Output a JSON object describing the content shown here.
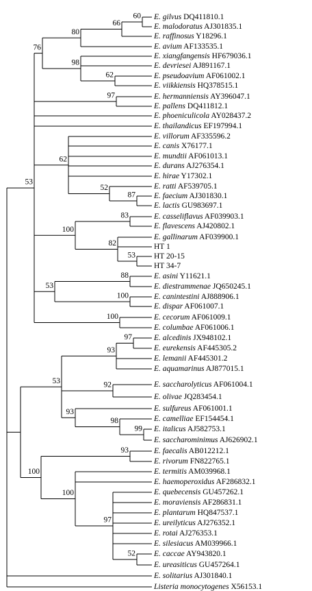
{
  "leaves": [
    {
      "name": "E. gilvus",
      "accession": "DQ411810.1"
    },
    {
      "name": "E. malodoratus",
      "accession": "AJ301835.1"
    },
    {
      "name": "E. raffinosus",
      "accession": "Y18296.1"
    },
    {
      "name": "E. avium",
      "accession": "AF133535.1"
    },
    {
      "name": "E. xiangfangensis",
      "accession": "HF679036.1"
    },
    {
      "name": "E. devriesei",
      "accession": "AJ891167.1"
    },
    {
      "name": "E. pseudoavium",
      "accession": "AF061002.1"
    },
    {
      "name": "E. viikkiensis",
      "accession": "HQ378515.1"
    },
    {
      "name": "E. hermanniensis",
      "accession": "AY396047.1"
    },
    {
      "name": "E. pallens",
      "accession": "DQ411812.1"
    },
    {
      "name": "E. phoeniculicola",
      "accession": "AY028437.2"
    },
    {
      "name": "E. thailandicus",
      "accession": "EF197994.1"
    },
    {
      "name": "E. villorum",
      "accession": "AF335596.2"
    },
    {
      "name": "E. canis",
      "accession": "X76177.1"
    },
    {
      "name": "E. mundtii",
      "accession": "AF061013.1"
    },
    {
      "name": "E. durans",
      "accession": "AJ276354.1"
    },
    {
      "name": "E. hirae",
      "accession": "Y17302.1"
    },
    {
      "name": "E. ratti",
      "accession": "AF539705.1"
    },
    {
      "name": "E. faecium",
      "accession": "AJ301830.1"
    },
    {
      "name": "E. lactis",
      "accession": "GU983697.1"
    },
    {
      "name": "E. casseliflavus",
      "accession": "AF039903.1"
    },
    {
      "name": "E. flavescens",
      "accession": "AJ420802.1"
    },
    {
      "name": "E. gallinarum",
      "accession": "AF039900.1"
    },
    {
      "label": "HT 1"
    },
    {
      "label": "HT 20-15"
    },
    {
      "label": "HT 34-7"
    },
    {
      "name": "E. asini",
      "accession": "Y11621.1"
    },
    {
      "name": "E. diestrammenae",
      "accession": "JQ650245.1"
    },
    {
      "name": "E. canintestini",
      "accession": "AJ888906.1"
    },
    {
      "name": "E. dispar",
      "accession": "AF061007.1"
    },
    {
      "name": "E. cecorum",
      "accession": "AF061009.1"
    },
    {
      "name": "E. columbae",
      "accession": "AF061006.1"
    },
    {
      "name": "E. alcedinis",
      "accession": "JX948102.1"
    },
    {
      "name": "E. eurekensis",
      "accession": "AF445305.2"
    },
    {
      "name": "E. lemanii",
      "accession": "AF445301.2"
    },
    {
      "name": "E. aquamarinus",
      "accession": "AJ877015.1"
    },
    {
      "name": "E. saccharolyticus",
      "accession": "AF061004.1"
    },
    {
      "name": "E. olivae",
      "accession": "JQ283454.1"
    },
    {
      "name": "E. sulfureus",
      "accession": "AF061001.1"
    },
    {
      "name": "E. camelliae",
      "accession": "EF154454.1"
    },
    {
      "name": "E. italicus",
      "accession": "AJ582753.1"
    },
    {
      "name": "E. saccharominimus",
      "accession": "AJ626902.1"
    },
    {
      "name": "E. faecalis",
      "accession": "AB012212.1"
    },
    {
      "name": "E. rivorum",
      "accession": "FN822765.1"
    },
    {
      "name": "E. termitis",
      "accession": "AM039968.1"
    },
    {
      "name": "E. haemoperoxidus",
      "accession": "AF286832.1"
    },
    {
      "name": "E. quebecensis",
      "accession": "GU457262.1"
    },
    {
      "name": "E. moraviensis",
      "accession": "AF286831.1"
    },
    {
      "name": "E. plantarum",
      "accession": "HQ847537.1"
    },
    {
      "name": "E. ureilyticus",
      "accession": "AJ276352.1"
    },
    {
      "name": "E. rotai",
      "accession": "AJ276353.1"
    },
    {
      "name": "E. silesiacus",
      "accession": "AM039966.1"
    },
    {
      "name": "E. caccae",
      "accession": "AY943820.1"
    },
    {
      "name": "E. ureasiticus",
      "accession": "GU457264.1"
    },
    {
      "name": "E. solitarius",
      "accession": "AJ301840.1"
    },
    {
      "name": "Listeria monocytogenes",
      "accession": "X56153.1"
    }
  ],
  "bootstrap": [
    53,
    76,
    80,
    66,
    60,
    98,
    62,
    97,
    62,
    52,
    87,
    100,
    83,
    82,
    53,
    53,
    88,
    100,
    100,
    53,
    93,
    97,
    92,
    93,
    98,
    99,
    100,
    93,
    100,
    97,
    52
  ]
}
